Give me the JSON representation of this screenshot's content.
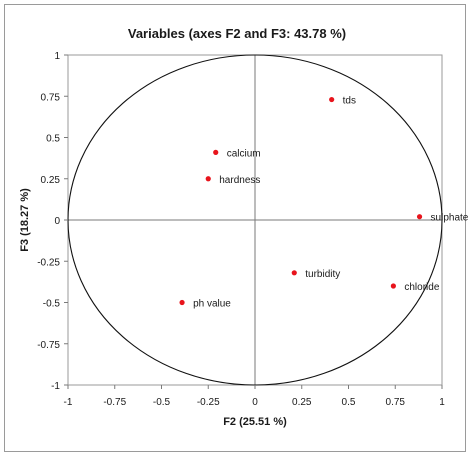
{
  "chart_data": {
    "type": "scatter",
    "title": "Variables (axes F2 and F3: 43.78 %)",
    "xlabel": "F2 (25.51 %)",
    "ylabel": "F3 (18.27 %)",
    "xlim": [
      -1,
      1
    ],
    "ylim": [
      -1,
      1
    ],
    "x_ticks": [
      "-1",
      "-0.75",
      "-0.5",
      "-0.25",
      "0",
      "0.25",
      "0.5",
      "0.75",
      "1"
    ],
    "y_ticks": [
      "1",
      "0.75",
      "0.5",
      "0.25",
      "0",
      "-0.25",
      "-0.5",
      "-0.75",
      "-1"
    ],
    "circle_radius": 1,
    "point_color": "#e8141c",
    "points": [
      {
        "label": "tds",
        "x": 0.41,
        "y": 0.73
      },
      {
        "label": "calcium",
        "x": -0.21,
        "y": 0.41
      },
      {
        "label": "hardness",
        "x": -0.25,
        "y": 0.25
      },
      {
        "label": "sulphate",
        "x": 0.88,
        "y": 0.02
      },
      {
        "label": "turbidity",
        "x": 0.21,
        "y": -0.32
      },
      {
        "label": "chloride",
        "x": 0.74,
        "y": -0.4
      },
      {
        "label": "ph value",
        "x": -0.39,
        "y": -0.5
      }
    ]
  }
}
